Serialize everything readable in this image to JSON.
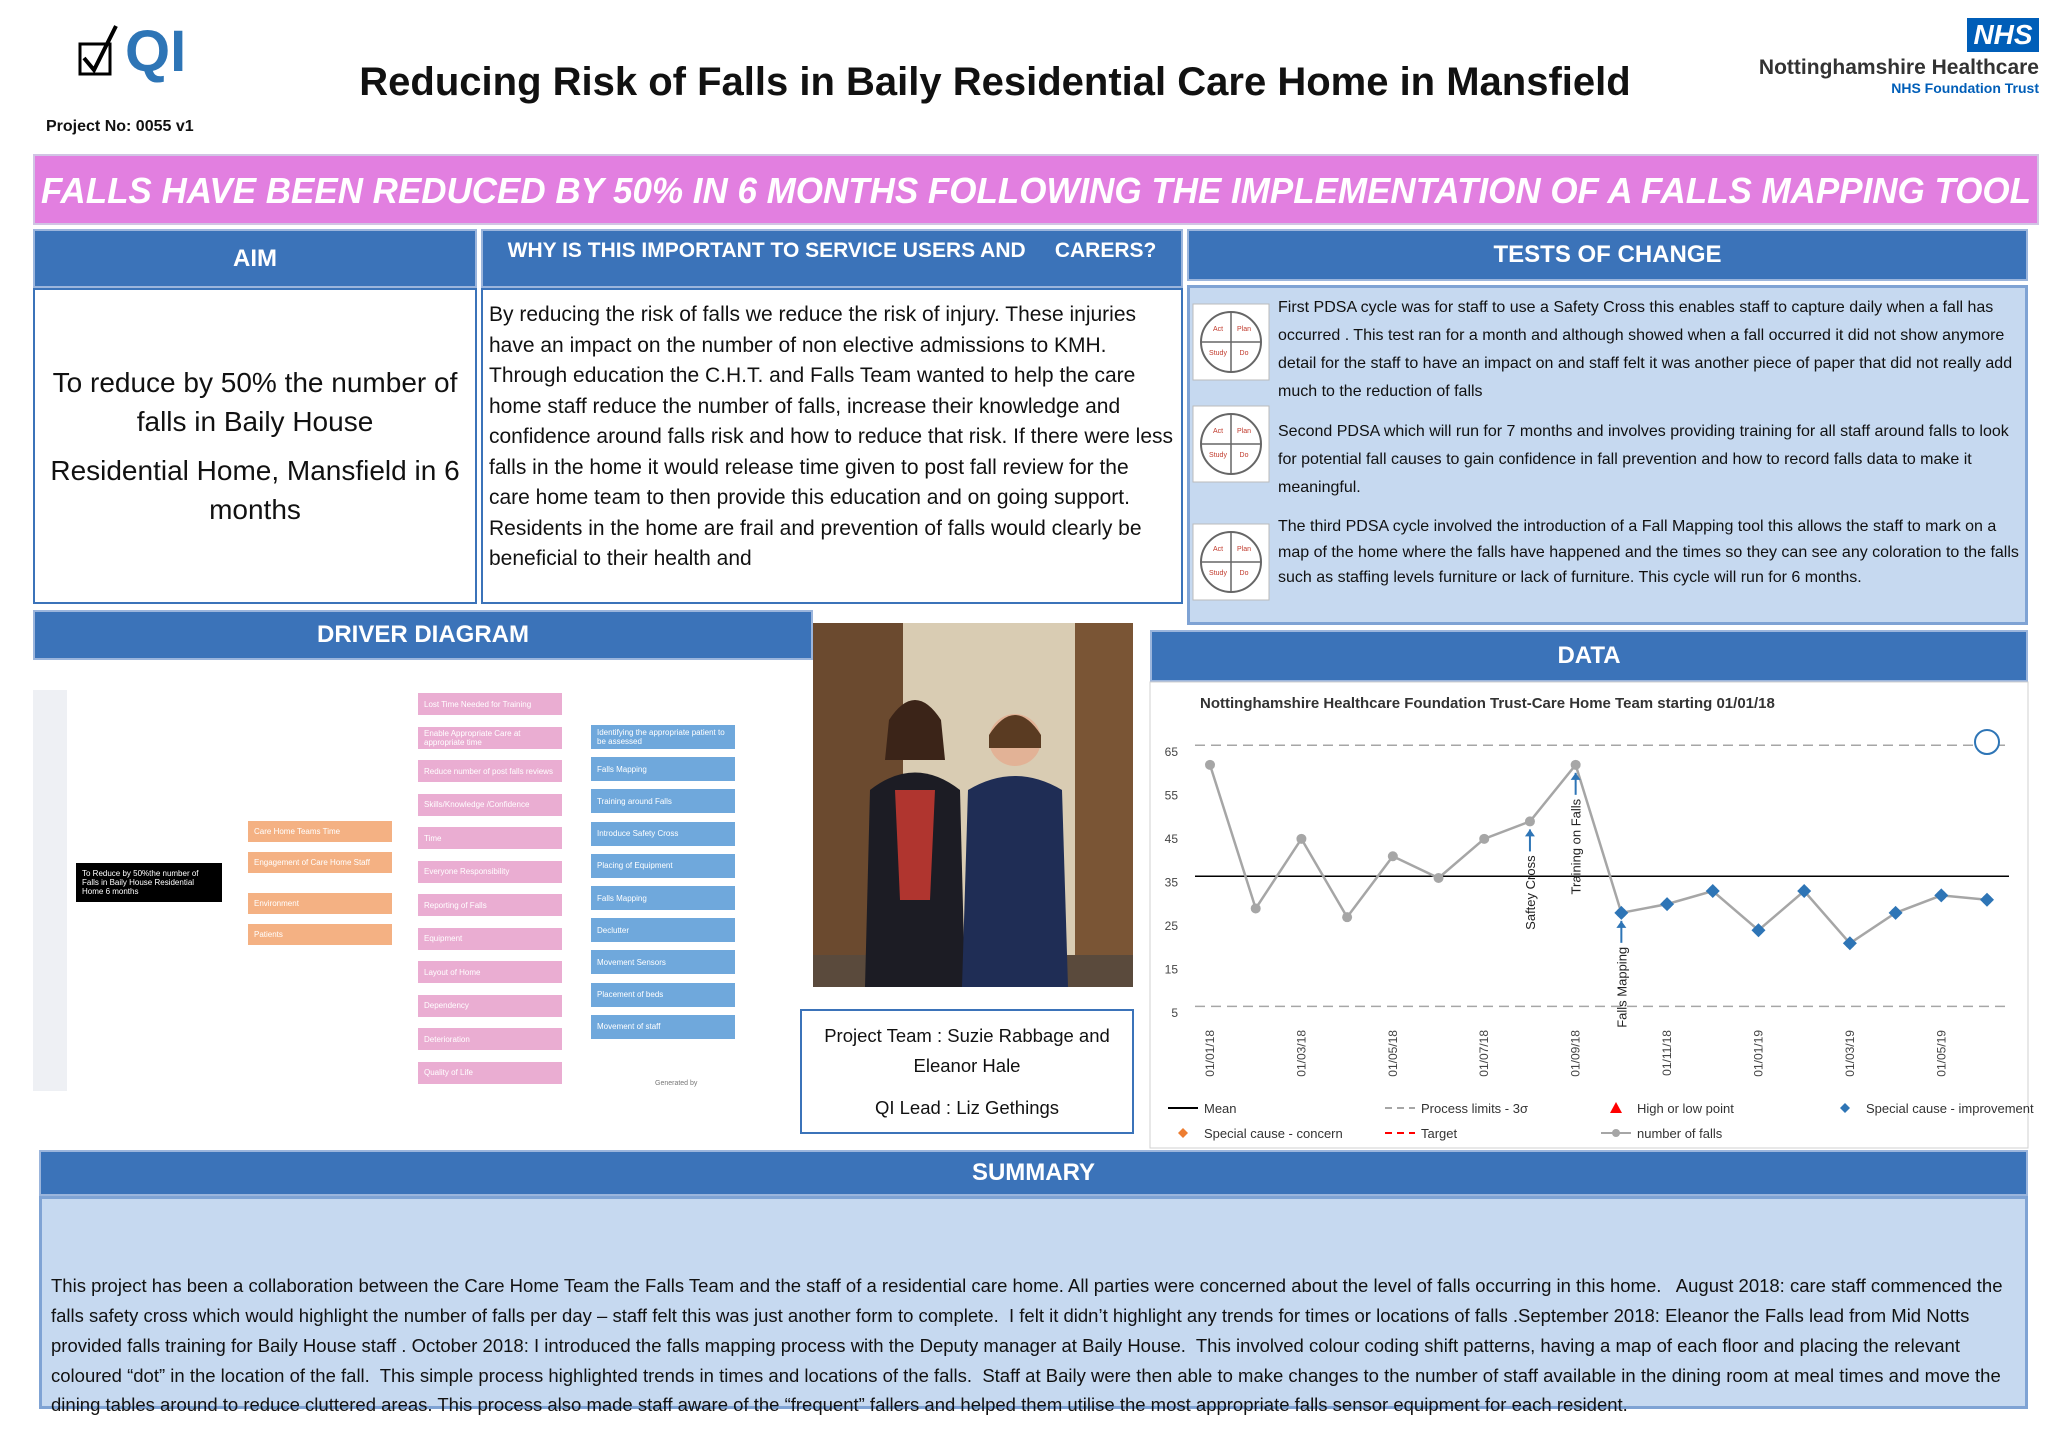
{
  "header": {
    "qi_logo": "QI",
    "title": "Reducing Risk of Falls in Baily Residential Care Home in Mansfield",
    "project_no": "Project No: 0055 v1",
    "nhs_logo": "NHS",
    "org_name": "Nottinghamshire Healthcare",
    "org_sub": "NHS Foundation Trust"
  },
  "banner": "FALLS HAVE BEEN REDUCED BY 50% IN 6 MONTHS FOLLOWING THE IMPLEMENTATION  OF A FALLS MAPPING TOOL",
  "aim": {
    "heading": "AIM",
    "paragraphs": [
      "To reduce by 50% the number of falls in Baily House",
      "Residential Home, Mansfield in 6 months"
    ]
  },
  "why": {
    "heading": "WHY IS THIS IMPORTANT TO SERVICE USERS AND     CARERS?",
    "text": "By reducing the risk of falls we reduce the risk of injury.  These injuries have an impact on the number of non elective admissions to KMH. Through education the C.H.T. and Falls Team wanted to help the care home staff reduce the number of falls, increase their knowledge and confidence around falls risk and how to reduce that risk. If there were less falls in the home it would release time given to post fall review for the care home team to then provide this education and on going support. Residents in the home are frail and prevention of falls would clearly be beneficial to their health and"
  },
  "tests": {
    "heading": "TESTS OF CHANGE",
    "icon_labels": [
      "Act",
      "Plan",
      "Study",
      "Do"
    ],
    "items": [
      "First PDSA cycle was for staff to use a Safety Cross this enables staff to capture daily when a fall has occurred . This test ran for a month and although showed when a fall occurred it did not show anymore detail for the staff to have an impact on and staff felt it was another piece of paper that did not really add much to the reduction of falls",
      "Second PDSA which will run for 7 months and involves providing training for all staff around falls to look for potential fall causes  to gain confidence in fall prevention and how to record falls data to make it meaningful.",
      "The third PDSA cycle involved the introduction of  a Fall Mapping tool this allows the staff to mark on a map of the home where the falls have happened and the times so they can see any coloration to the falls such as staffing levels furniture or lack of furniture. This cycle will run for 6 months."
    ]
  },
  "driver_diagram": {
    "heading": "DRIVER DIAGRAM",
    "aim": "To Reduce by 50%the number of Falls in Baily House Residential Home 6 months",
    "primary": [
      "Care Home Teams Time",
      "Engagement of Care Home Staff",
      "Environment",
      "Patients"
    ],
    "secondary": [
      "Lost Time Needed for Training",
      "Enable Appropriate Care at appropriate time",
      "Reduce number of post falls reviews",
      "Skills/Knowledge /Confidence",
      "Time",
      "Everyone Responsibility",
      "Reporting of Falls",
      "Equipment",
      "Layout of Home",
      "Dependency",
      "Deterioration",
      "Quality of Life"
    ],
    "change_ideas": [
      "Identifying the appropriate patient to be assessed",
      "Falls Mapping",
      "Training around Falls",
      "Introduce Safety Cross",
      "Placing of Equipment",
      "Falls Mapping",
      "Declutter",
      "Movement Sensors",
      "Placement of beds",
      "Movement of staff"
    ],
    "footer": "Generated by"
  },
  "team": {
    "lines": [
      "Project Team :  Suzie Rabbage and Eleanor Hale",
      "QI Lead : Liz Gethings"
    ]
  },
  "data_heading": "DATA",
  "chart_data": {
    "type": "line",
    "title": "Nottinghamshire Healthcare Foundation Trust-Care Home Team starting 01/01/18",
    "categories": [
      "01/01/18",
      null,
      "01/03/18",
      null,
      "01/05/18",
      null,
      "01/07/18",
      null,
      "01/09/18",
      null,
      "01/11/18",
      null,
      "01/01/19",
      null,
      "01/03/19",
      null,
      "01/05/19",
      null
    ],
    "series": [
      {
        "name": "number of falls",
        "color": "#a6a6a6",
        "values": [
          62,
          29,
          45,
          27,
          41,
          36,
          45,
          49,
          62,
          28,
          30,
          33,
          24,
          33,
          21,
          28,
          32,
          31
        ]
      },
      {
        "name": "Special cause - improvement",
        "color": "#2e75b6",
        "values": [
          null,
          null,
          null,
          null,
          null,
          null,
          null,
          null,
          null,
          28,
          30,
          33,
          24,
          33,
          21,
          28,
          32,
          31
        ]
      }
    ],
    "reference_lines": [
      {
        "name": "Mean",
        "color": "#000000",
        "values": [
          36.4
        ]
      },
      {
        "name": "Process limits - 3σ",
        "color": "#a6a6a6",
        "values": [
          66.5,
          6.5
        ]
      }
    ],
    "legend_only": [
      {
        "name": "High or low point",
        "color": "#ff0000"
      },
      {
        "name": "Special cause - concern",
        "color": "#ed7d31"
      },
      {
        "name": "Target",
        "color": "#ff0000"
      }
    ],
    "annotations": [
      "Saftey Cross",
      "Training on Falls",
      "Falls Mapping"
    ],
    "ylim": [
      2,
      70
    ],
    "yticks": [
      5,
      15,
      25,
      35,
      45,
      55,
      65
    ]
  },
  "summary": {
    "heading": "SUMMARY",
    "text": "This project has been a collaboration between the Care Home Team the Falls Team and the staff of a residential care home. All parties were concerned about the level of falls occurring in this home.   August 2018: care staff commenced the falls safety cross which would highlight the number of falls per day – staff felt this was just another form to complete.  I felt it didn’t highlight any trends for times or locations of falls .September 2018: Eleanor the Falls lead from Mid Notts provided falls training for Baily House staff . October 2018: I introduced the falls mapping process with the Deputy manager at Baily House.  This involved colour coding shift patterns, having a map of each floor and placing the relevant coloured “dot” in the location of the fall.  This simple process highlighted trends in times and locations of the falls.  Staff at Baily were then able to make changes to the number of staff available in the dining room at meal times and move the dining tables around to reduce cluttered areas. This process also made staff aware of the “frequent” fallers and helped them utilise the most appropriate falls sensor equipment for each resident."
  }
}
